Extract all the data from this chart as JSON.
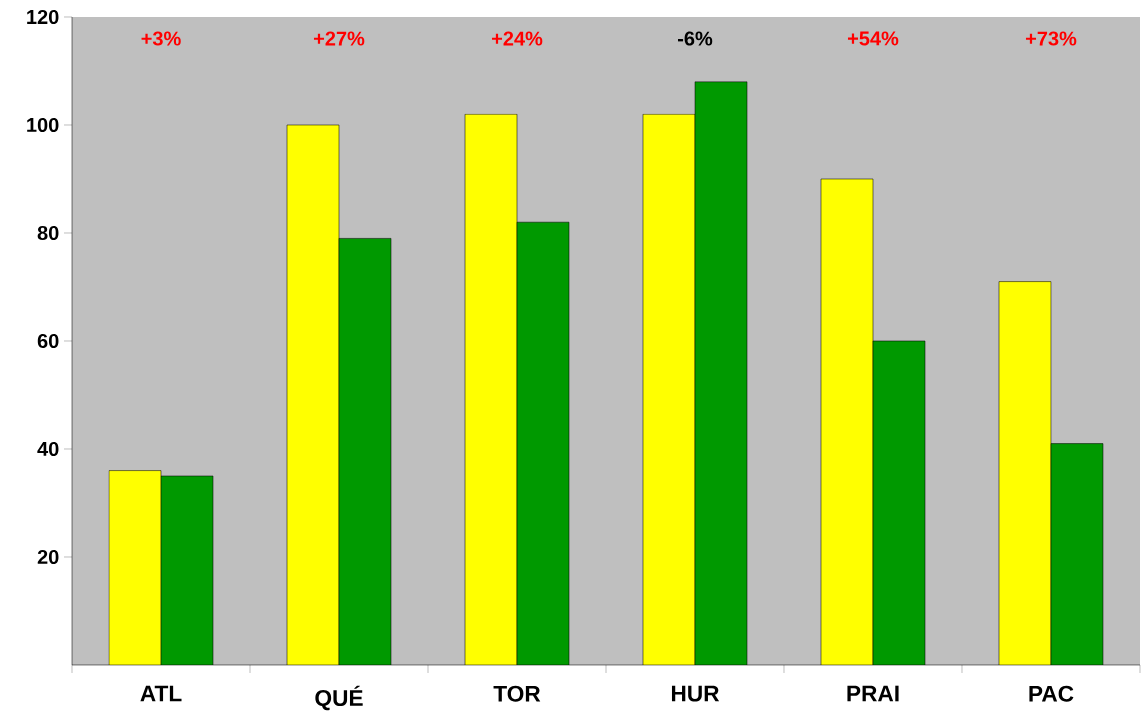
{
  "chart_data": {
    "type": "bar",
    "categories": [
      "ATL",
      "QUÉ",
      "TOR",
      "HUR",
      "PRAI",
      "PAC"
    ],
    "series": [
      {
        "color": "#ffff00",
        "values": [
          36,
          100,
          102,
          102,
          90,
          71
        ]
      },
      {
        "color": "#009900",
        "values": [
          35,
          79,
          82,
          108,
          60,
          41
        ]
      }
    ],
    "ylim": [
      0,
      120
    ],
    "yticks": [
      20,
      40,
      60,
      80,
      100,
      120
    ],
    "annotations": [
      "+3%",
      "+27%",
      "+24%",
      "-6%",
      "+54%",
      "+73%"
    ]
  }
}
